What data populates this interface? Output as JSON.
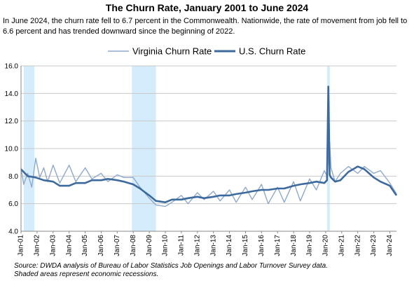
{
  "chart_data": {
    "type": "line",
    "title": "The Churn Rate, January 2001 to June 2024",
    "subtitle": "In June 2024, the churn rate fell to 6.7 percent  in the Commonwealth. Nationwide, the rate of movement from job fell to 6.6 percent and has trended downward since the beginning of 2022.",
    "source_note": "Source: DWDA analysis of Bureau of Labor Statistics Job Openings and Labor Turnover Survey data.\nShaded areas represent economic recessions.",
    "xlabel": "",
    "ylabel": "",
    "ylim": [
      4.0,
      16.0
    ],
    "y_ticks": [
      4.0,
      6.0,
      8.0,
      10.0,
      12.0,
      14.0,
      16.0
    ],
    "y_tick_labels": [
      "4.0",
      "6.0",
      "8.0",
      "10.0",
      "12.0",
      "14.0",
      "16.0"
    ],
    "x_range": [
      "2001-01",
      "2024-06"
    ],
    "x_tick_labels": [
      "Jan-01",
      "Jan-02",
      "Jan-03",
      "Jan-04",
      "Jan-05",
      "Jan-06",
      "Jan-07",
      "Jan-08",
      "Jan-09",
      "Jan-10",
      "Jan-11",
      "Jan-12",
      "Jan-13",
      "Jan-14",
      "Jan-15",
      "Jan-16",
      "Jan-17",
      "Jan-18",
      "Jan-19",
      "Jan-20",
      "Jan-21",
      "Jan-22",
      "Jan-23",
      "Jan-24"
    ],
    "grid": "horizontal",
    "legend_position": "top",
    "recessions": [
      {
        "start": "2001-03",
        "end": "2001-11"
      },
      {
        "start": "2007-12",
        "end": "2009-06"
      },
      {
        "start": "2020-02",
        "end": "2020-04"
      }
    ],
    "series": [
      {
        "name": "Virginia Churn Rate",
        "color": "#8fa9cc",
        "line_width": "thin",
        "x": [
          "2001-01",
          "2001-03",
          "2001-06",
          "2001-09",
          "2001-12",
          "2002-03",
          "2002-06",
          "2002-09",
          "2003-01",
          "2003-06",
          "2004-01",
          "2004-06",
          "2005-01",
          "2005-06",
          "2006-01",
          "2006-06",
          "2007-01",
          "2007-06",
          "2008-01",
          "2008-06",
          "2009-01",
          "2009-06",
          "2010-01",
          "2010-06",
          "2011-01",
          "2011-06",
          "2012-01",
          "2012-06",
          "2013-01",
          "2013-06",
          "2014-01",
          "2014-06",
          "2015-01",
          "2015-06",
          "2016-01",
          "2016-06",
          "2017-01",
          "2017-06",
          "2018-01",
          "2018-06",
          "2019-01",
          "2019-06",
          "2019-12",
          "2020-02",
          "2020-04",
          "2020-05",
          "2020-08",
          "2020-12",
          "2021-06",
          "2022-01",
          "2022-06",
          "2023-01",
          "2023-06",
          "2024-01",
          "2024-06"
        ],
        "values": [
          8.6,
          7.4,
          8.2,
          7.2,
          9.3,
          7.9,
          8.6,
          7.6,
          8.8,
          7.5,
          8.8,
          7.6,
          8.6,
          7.8,
          8.2,
          7.6,
          8.1,
          7.9,
          7.9,
          7.2,
          6.4,
          5.9,
          5.8,
          6.1,
          6.6,
          6.0,
          6.8,
          6.3,
          6.9,
          6.2,
          7.0,
          6.1,
          7.2,
          6.3,
          7.4,
          6.0,
          7.2,
          6.1,
          7.6,
          6.2,
          7.8,
          7.0,
          8.4,
          8.0,
          10.5,
          8.6,
          7.6,
          8.2,
          8.7,
          8.2,
          8.7,
          8.2,
          8.4,
          7.5,
          6.7
        ]
      },
      {
        "name": "U.S. Churn Rate",
        "color": "#3d6a9e",
        "line_width": "thick",
        "x": [
          "2001-01",
          "2001-06",
          "2001-12",
          "2002-06",
          "2003-01",
          "2003-06",
          "2004-01",
          "2004-06",
          "2005-01",
          "2005-06",
          "2006-01",
          "2006-06",
          "2007-01",
          "2007-06",
          "2008-01",
          "2008-06",
          "2009-01",
          "2009-06",
          "2010-01",
          "2010-06",
          "2011-01",
          "2011-06",
          "2012-01",
          "2012-06",
          "2013-01",
          "2013-06",
          "2014-01",
          "2014-06",
          "2015-01",
          "2015-06",
          "2016-01",
          "2016-06",
          "2017-01",
          "2017-06",
          "2018-01",
          "2018-06",
          "2019-01",
          "2019-06",
          "2019-12",
          "2020-02",
          "2020-03",
          "2020-04",
          "2020-05",
          "2020-08",
          "2020-12",
          "2021-06",
          "2022-01",
          "2022-06",
          "2023-01",
          "2023-06",
          "2024-01",
          "2024-06"
        ],
        "values": [
          8.5,
          8.0,
          7.9,
          7.7,
          7.6,
          7.3,
          7.3,
          7.5,
          7.5,
          7.7,
          7.7,
          7.8,
          7.7,
          7.6,
          7.4,
          7.1,
          6.6,
          6.2,
          6.1,
          6.3,
          6.3,
          6.4,
          6.5,
          6.4,
          6.5,
          6.6,
          6.6,
          6.7,
          6.8,
          6.9,
          7.0,
          7.0,
          7.1,
          7.1,
          7.3,
          7.4,
          7.5,
          7.6,
          7.5,
          7.7,
          14.5,
          8.1,
          7.9,
          7.6,
          7.7,
          8.3,
          8.7,
          8.5,
          7.9,
          7.6,
          7.3,
          6.6
        ]
      }
    ]
  }
}
